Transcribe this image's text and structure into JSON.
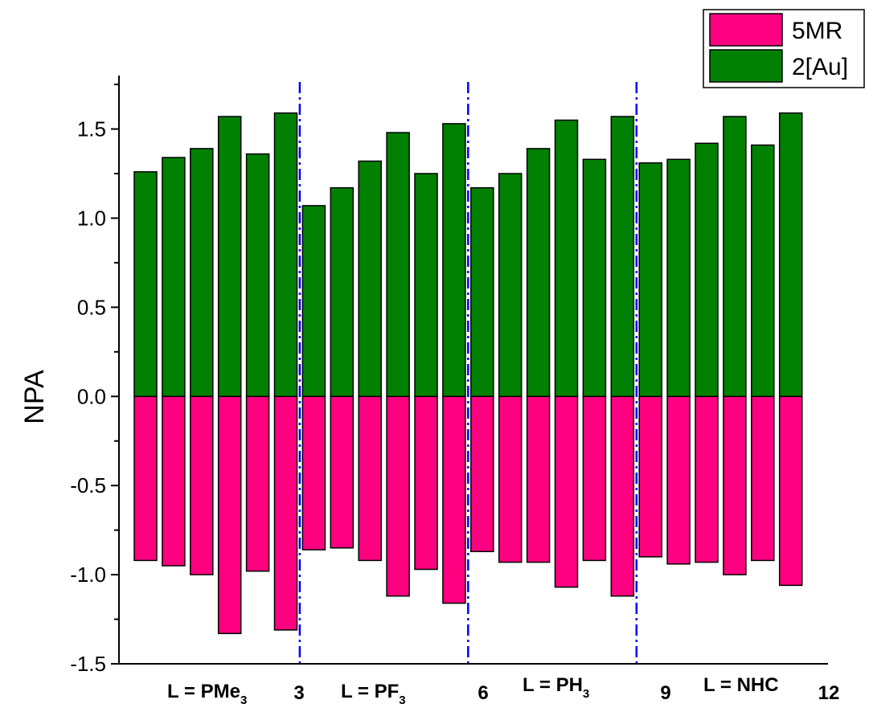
{
  "chart_data": {
    "type": "bar",
    "ylabel": "NPA",
    "xlabel": "",
    "ylim": [
      -1.5,
      1.8
    ],
    "yticks": [
      -1.5,
      -1.0,
      -0.5,
      0.0,
      0.5,
      1.0,
      1.5
    ],
    "ytick_labels": [
      "-1.5",
      "-1.0",
      "-0.5",
      "0.0",
      "0.5",
      "1.0",
      "1.5"
    ],
    "grid": false,
    "legend_position": "top-right",
    "stacked_about_zero": true,
    "series": [
      {
        "name": "5MR",
        "color": "#ff0080",
        "values": [
          -0.92,
          -0.95,
          -1.0,
          -1.33,
          -0.98,
          -1.31,
          -0.86,
          -0.85,
          -0.92,
          -1.12,
          -0.97,
          -1.16,
          -0.87,
          -0.93,
          -0.93,
          -1.07,
          -0.92,
          -1.12,
          -0.9,
          -0.94,
          -0.93,
          -1.0,
          -0.92,
          -1.06
        ]
      },
      {
        "name": "2[Au]",
        "color": "#008000",
        "values": [
          1.26,
          1.34,
          1.39,
          1.57,
          1.36,
          1.59,
          1.07,
          1.17,
          1.32,
          1.48,
          1.25,
          1.53,
          1.17,
          1.25,
          1.39,
          1.55,
          1.33,
          1.57,
          1.31,
          1.33,
          1.42,
          1.57,
          1.41,
          1.59
        ]
      }
    ],
    "group_separators": [
      6,
      12,
      18
    ],
    "separator_color": "#0000ff",
    "groups": [
      {
        "label": "L = PMe",
        "sub": "3",
        "number": "3"
      },
      {
        "label": "L = PF",
        "sub": "3",
        "number": "6"
      },
      {
        "label": "L = PH",
        "sub": "3",
        "number": "9"
      },
      {
        "label": "L = NHC",
        "sub": "",
        "number": "12"
      }
    ]
  }
}
